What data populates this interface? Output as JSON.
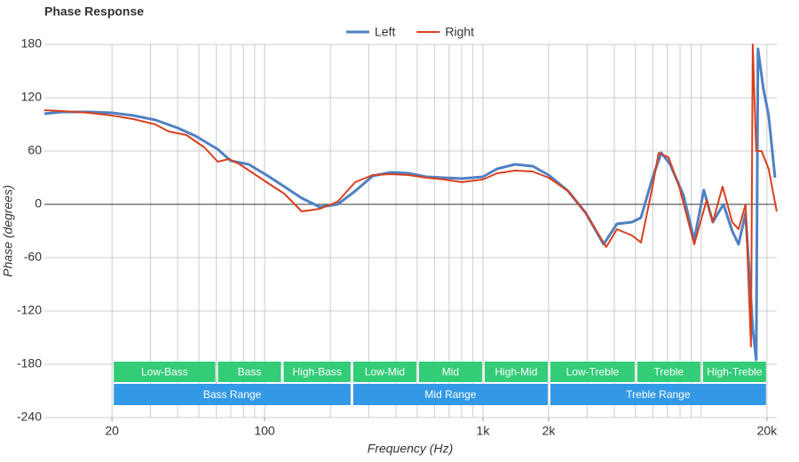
{
  "chart_data": {
    "type": "line",
    "title": "Phase Response",
    "x_label": "Frequency (Hz)",
    "y_label": "Phase (degrees)",
    "xscale": "log",
    "xlim": [
      9.8,
      22200
    ],
    "ylim": [
      -240,
      180
    ],
    "xticks": [
      20,
      100,
      {
        "value": 1000,
        "label": "1k"
      },
      {
        "value": 2000,
        "label": "2k"
      },
      {
        "value": 20000,
        "label": "20k"
      }
    ],
    "yticks": [
      -240,
      -180,
      -120,
      -60,
      0,
      60,
      120,
      180
    ],
    "xgrid": [
      20,
      30,
      40,
      50,
      60,
      70,
      80,
      90,
      100,
      200,
      300,
      400,
      500,
      600,
      700,
      800,
      900,
      1000,
      2000,
      3000,
      4000,
      5000,
      6000,
      7000,
      8000,
      9000,
      10000,
      20000
    ],
    "grid": true,
    "legend": "top",
    "series": [
      {
        "name": "Left",
        "color": "#4f81c2",
        "width": 3,
        "x": [
          9.8,
          11.8,
          15.7,
          20,
          25,
          31.6,
          40,
          48.2,
          61,
          70,
          84.5,
          102,
          123,
          148,
          179,
          216,
          260,
          313,
          378,
          456,
          550,
          662,
          800,
          1000,
          1162,
          1403,
          1690,
          2000,
          2456,
          2965,
          3572,
          4112,
          4822,
          5300,
          5985,
          6565,
          7210,
          8300,
          9290,
          10280,
          11300,
          12650,
          13880,
          14830,
          15970,
          17220,
          17870,
          18200,
          19270,
          20370,
          21780
        ],
        "values": [
          102,
          104,
          104,
          103,
          100,
          95,
          86,
          77,
          62,
          49,
          45,
          33,
          20,
          7,
          -3,
          0,
          15,
          32,
          36,
          35,
          31,
          30,
          29,
          31,
          40,
          45,
          43,
          33,
          15,
          -10,
          -45,
          -22,
          -20,
          -15,
          30,
          58,
          45,
          10,
          -40,
          16,
          -20,
          0,
          -30,
          -45,
          -10,
          -140,
          -175,
          175,
          130,
          100,
          30
        ]
      },
      {
        "name": "Right",
        "color": "#d9401e",
        "width": 2,
        "x": [
          9.8,
          11.8,
          15.7,
          20,
          25,
          31.6,
          36.4,
          43.9,
          53,
          61,
          68.8,
          77,
          102,
          123,
          148,
          179,
          216,
          260,
          313,
          378,
          456,
          550,
          662,
          800,
          1000,
          1162,
          1403,
          1690,
          2000,
          2456,
          2965,
          3674,
          4112,
          4822,
          5300,
          5985,
          6385,
          7080,
          7925,
          9290,
          10590,
          11300,
          12530,
          13880,
          14830,
          15970,
          16900,
          17220,
          17870,
          18910,
          20370,
          22180
        ],
        "values": [
          106,
          105,
          103,
          100,
          96,
          90,
          82,
          78,
          64,
          48,
          51,
          45,
          25,
          12,
          -8,
          -5,
          3,
          25,
          33,
          34,
          33,
          30,
          28,
          25,
          28,
          35,
          38,
          37,
          30,
          15,
          -10,
          -48,
          -28,
          -35,
          -43,
          20,
          58,
          53,
          20,
          -45,
          5,
          -20,
          20,
          -20,
          -28,
          0,
          -160,
          180,
          60,
          60,
          40,
          -8
        ]
      }
    ],
    "bands": [
      {
        "label": "Low-Bass",
        "start": 20,
        "end": 60
      },
      {
        "label": "Bass",
        "start": 60,
        "end": 120
      },
      {
        "label": "High-Bass",
        "start": 120,
        "end": 250
      },
      {
        "label": "Low-Mid",
        "start": 250,
        "end": 500
      },
      {
        "label": "Mid",
        "start": 500,
        "end": 1000
      },
      {
        "label": "High-Mid",
        "start": 1000,
        "end": 2000
      },
      {
        "label": "Low-Treble",
        "start": 2000,
        "end": 5000
      },
      {
        "label": "Treble",
        "start": 5000,
        "end": 10000
      },
      {
        "label": "High-Treble",
        "start": 10000,
        "end": 20000
      }
    ],
    "band_color": "#33cc77",
    "ranges": [
      {
        "label": "Bass Range",
        "start": 20,
        "end": 250
      },
      {
        "label": "Mid Range",
        "start": 250,
        "end": 2000
      },
      {
        "label": "Treble Range",
        "start": 2000,
        "end": 20000
      }
    ],
    "range_color": "#3399e6"
  }
}
